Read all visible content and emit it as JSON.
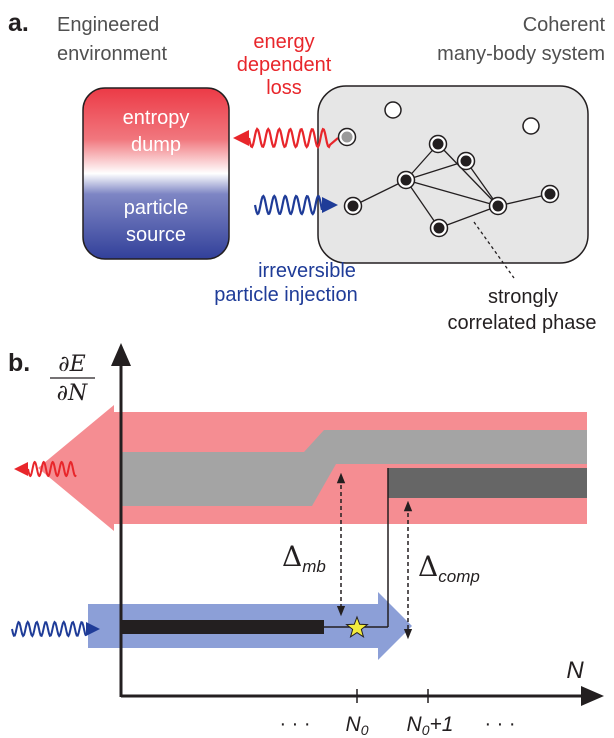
{
  "panel_a": {
    "label": "a.",
    "env_title_1": "Engineered",
    "env_title_2": "environment",
    "sys_title_1": "Coherent",
    "sys_title_2": "many-body system",
    "loss_1": "energy",
    "loss_2": "dependent",
    "loss_3": "loss",
    "dump_1": "entropy",
    "dump_2": "dump",
    "source_1": "particle",
    "source_2": "source",
    "inject_1": "irreversible",
    "inject_2": "particle injection",
    "phase_1": "strongly",
    "phase_2": "correlated phase"
  },
  "panel_b": {
    "label": "b.",
    "y_num": "∂E",
    "y_den": "∂N",
    "x_axis": "N",
    "delta_mb_sym": "Δ",
    "delta_mb_sub": "mb",
    "delta_comp_sym": "Δ",
    "delta_comp_sub": "comp",
    "tick_left": "· · ·",
    "tick_n0": "N",
    "tick_n0_sub": "0",
    "tick_n1": "N",
    "tick_n1_sub": "0",
    "tick_n1_suffix": "+1",
    "tick_right": "· · ·"
  },
  "colors": {
    "loss_red": "#e8262b",
    "inject_blue": "#1f3c98",
    "red_band": "#f58d92",
    "gray_band": "#a4a4a4",
    "dark_gray": "#666666",
    "blue_arrow": "#8c9fd7",
    "star": "#f3ec3d"
  }
}
